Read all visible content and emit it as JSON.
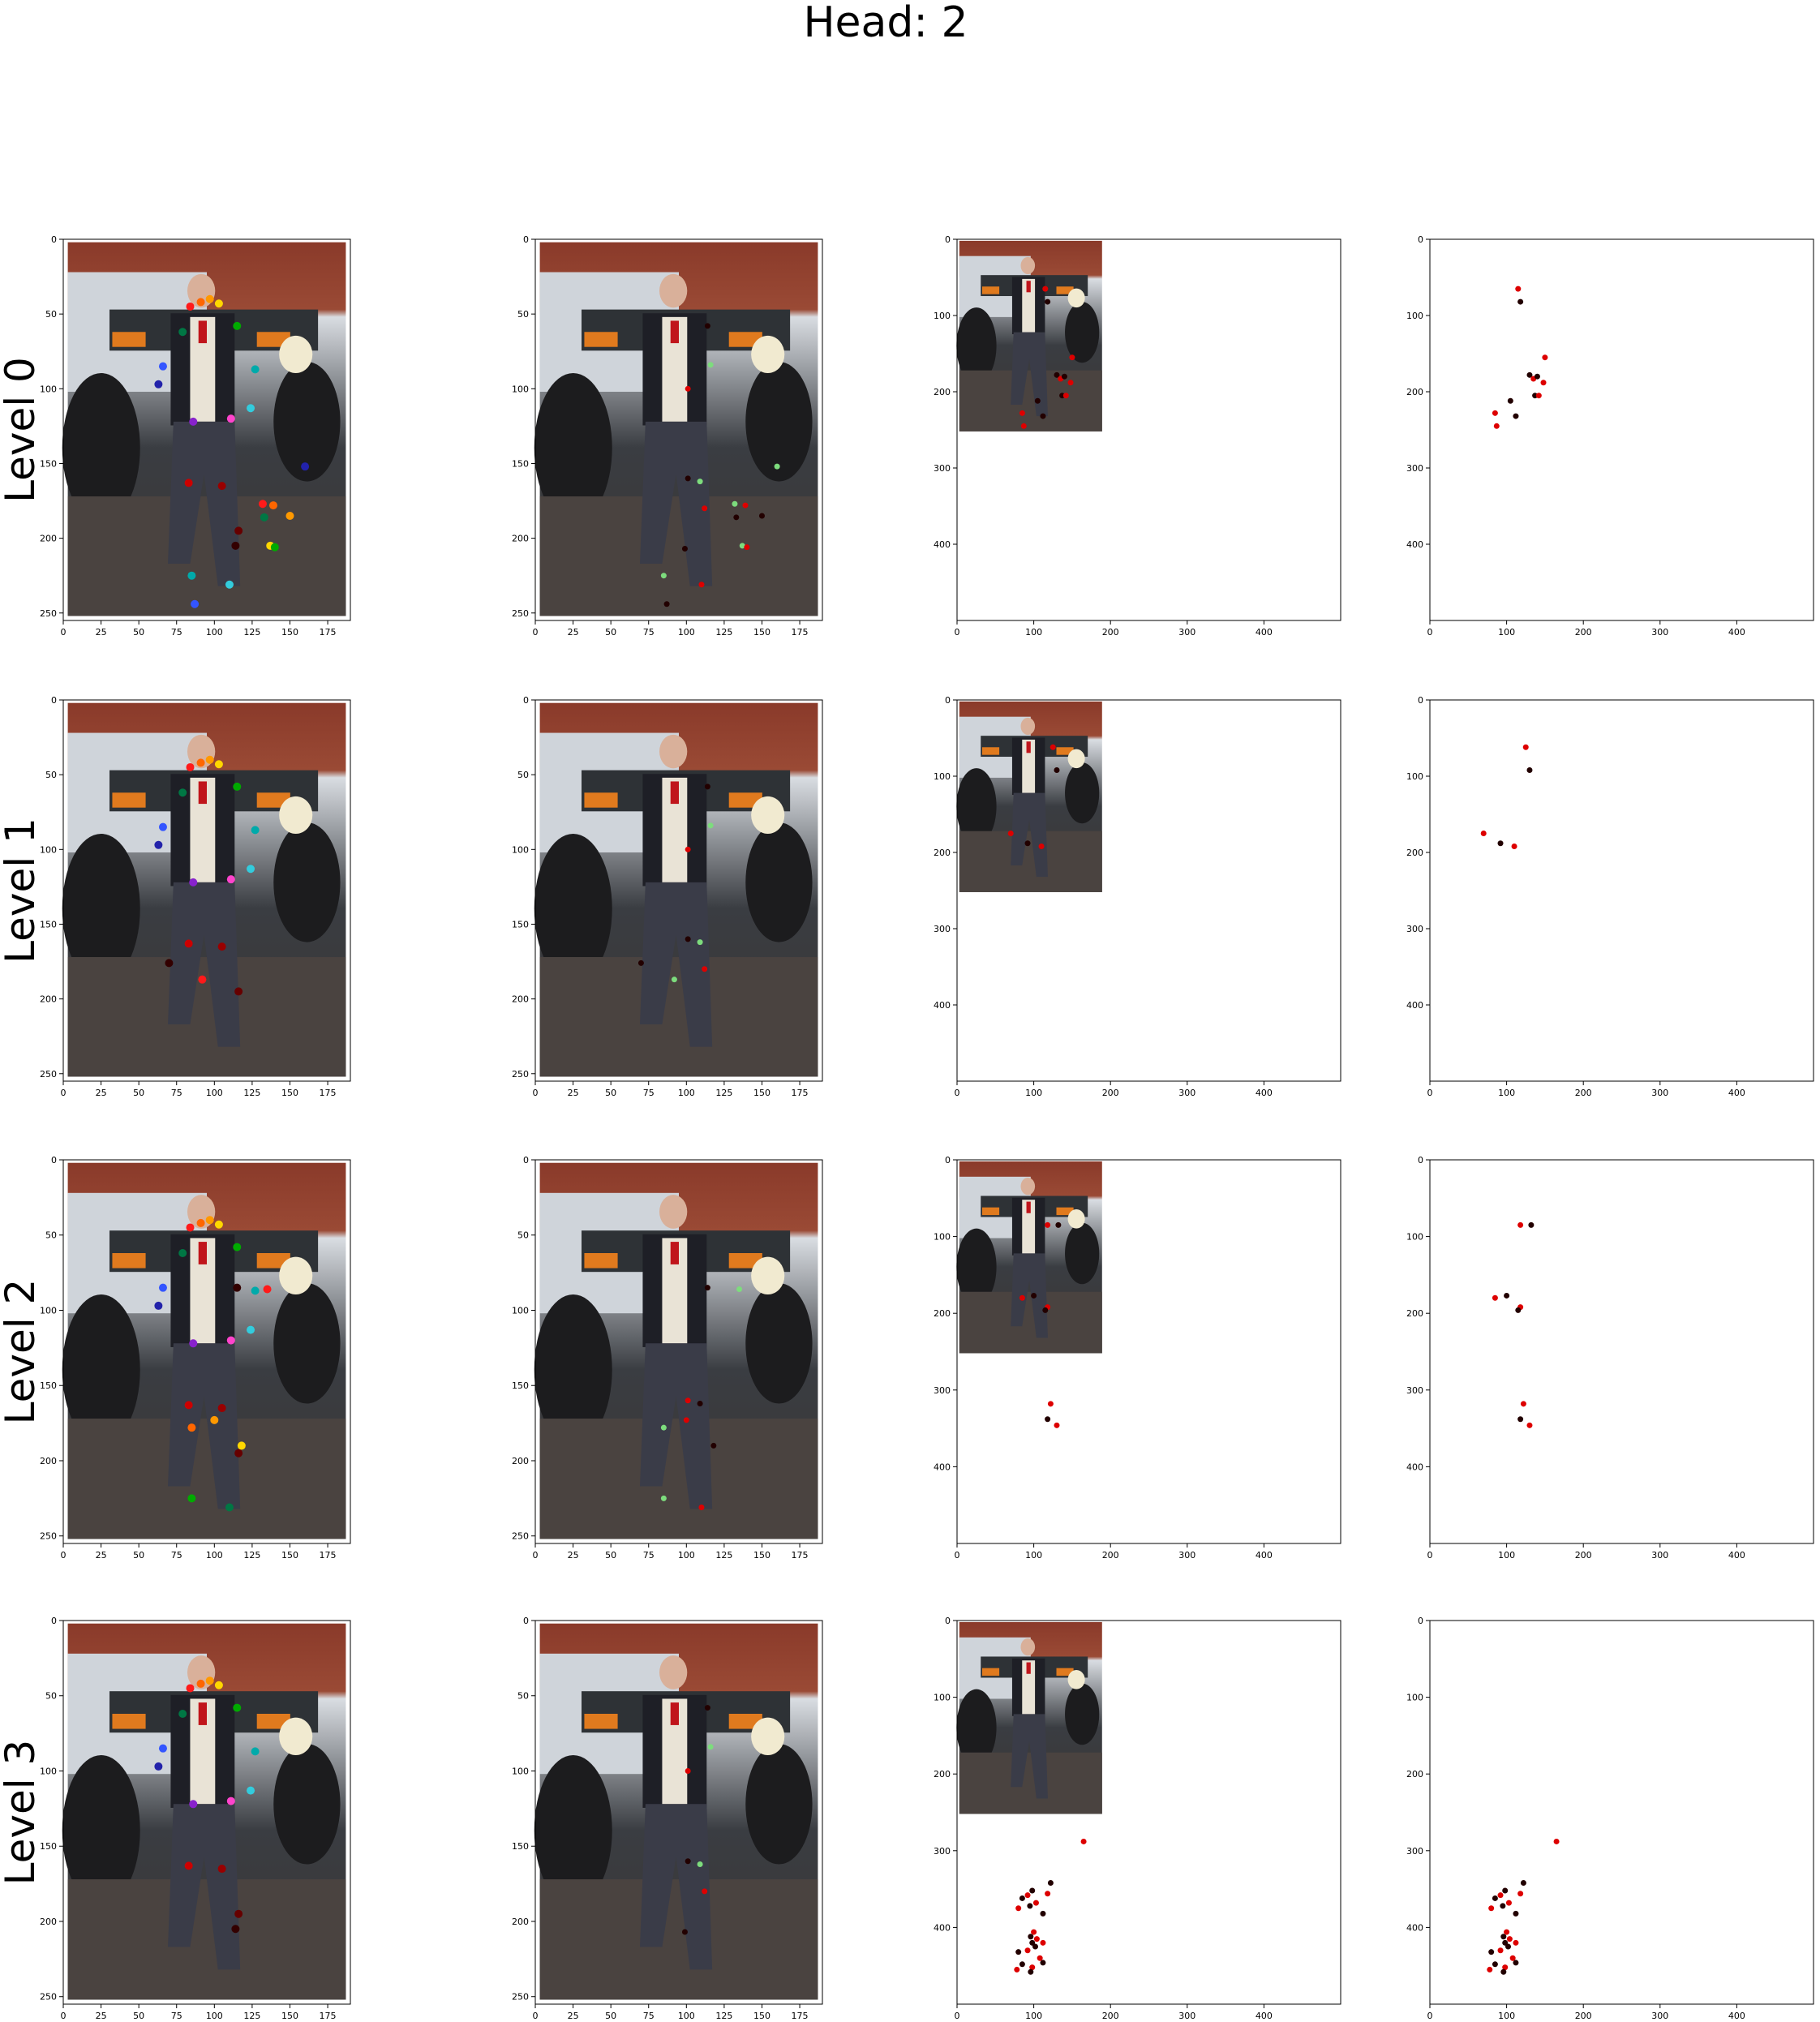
{
  "figure": {
    "suptitle": "Head: 2",
    "row_labels": [
      "Level 0",
      "Level 1",
      "Level 2",
      "Level 3"
    ]
  },
  "colors": {
    "ref_points": [
      "#ff1a1a",
      "#ff6600",
      "#ff9900",
      "#ffd700",
      "#00aa00",
      "#007744",
      "#00aaaa",
      "#33ccdd",
      "#3355ff",
      "#2222aa",
      "#8822cc",
      "#ff44cc",
      "#cc0000",
      "#990000",
      "#660000",
      "#330000"
    ],
    "sample_green": "#7ddc7d",
    "sample_dark": "#220000",
    "sample_red": "#dd0000"
  },
  "chart_data": [
    {
      "panel": "level0-reference-keypoints",
      "type": "scatter",
      "background": "person-photo",
      "xlim": [
        0,
        190
      ],
      "ylim": [
        255,
        0
      ],
      "xticks": [
        0,
        25,
        50,
        75,
        100,
        125,
        150,
        175
      ],
      "yticks": [
        0,
        50,
        100,
        150,
        200,
        250
      ],
      "points": [
        [
          84,
          45
        ],
        [
          91,
          42
        ],
        [
          97,
          40
        ],
        [
          103,
          43
        ],
        [
          115,
          58
        ],
        [
          79,
          62
        ],
        [
          127,
          87
        ],
        [
          124,
          113
        ],
        [
          66,
          85
        ],
        [
          63,
          97
        ],
        [
          86,
          122
        ],
        [
          111,
          120
        ],
        [
          83,
          163
        ],
        [
          105,
          165
        ],
        [
          116,
          195
        ],
        [
          114,
          205
        ],
        [
          132,
          177
        ],
        [
          139,
          178
        ],
        [
          150,
          185
        ],
        [
          137,
          205
        ],
        [
          140,
          206
        ],
        [
          133,
          186
        ],
        [
          85,
          225
        ],
        [
          110,
          231
        ],
        [
          87,
          244
        ],
        [
          160,
          152
        ]
      ]
    },
    {
      "panel": "level0-sampling-points",
      "type": "scatter",
      "background": "person-photo",
      "xlim": [
        0,
        190
      ],
      "ylim": [
        255,
        0
      ],
      "xticks": [
        0,
        25,
        50,
        75,
        100,
        125,
        150,
        175
      ],
      "yticks": [
        0,
        50,
        100,
        150,
        200,
        250
      ],
      "points": [
        [
          114,
          58
        ],
        [
          116,
          84
        ],
        [
          101,
          100
        ],
        [
          101,
          160
        ],
        [
          109,
          162
        ],
        [
          112,
          180
        ],
        [
          99,
          207
        ],
        [
          132,
          177
        ],
        [
          139,
          178
        ],
        [
          150,
          185
        ],
        [
          137,
          205
        ],
        [
          140,
          206
        ],
        [
          133,
          186
        ],
        [
          85,
          225
        ],
        [
          110,
          231
        ],
        [
          87,
          244
        ],
        [
          160,
          152
        ]
      ]
    },
    {
      "panel": "level0-image-extent",
      "type": "scatter",
      "background": "photo-thumbnail",
      "xlim": [
        0,
        500
      ],
      "ylim": [
        500,
        0
      ],
      "xticks": [
        0,
        100,
        200,
        300,
        400
      ],
      "yticks": [
        0,
        100,
        200,
        300,
        400
      ],
      "points": [
        [
          115,
          65
        ],
        [
          118,
          82
        ],
        [
          150,
          155
        ],
        [
          130,
          178
        ],
        [
          135,
          183
        ],
        [
          140,
          180
        ],
        [
          148,
          188
        ],
        [
          137,
          205
        ],
        [
          142,
          205
        ],
        [
          105,
          212
        ],
        [
          85,
          228
        ],
        [
          112,
          232
        ],
        [
          87,
          245
        ]
      ]
    },
    {
      "panel": "level0-points-only",
      "type": "scatter",
      "background": "none",
      "xlim": [
        0,
        500
      ],
      "ylim": [
        500,
        0
      ],
      "xticks": [
        0,
        100,
        200,
        300,
        400
      ],
      "yticks": [
        0,
        100,
        200,
        300,
        400
      ],
      "points": [
        [
          115,
          65
        ],
        [
          118,
          82
        ],
        [
          150,
          155
        ],
        [
          130,
          178
        ],
        [
          135,
          183
        ],
        [
          140,
          180
        ],
        [
          148,
          188
        ],
        [
          137,
          205
        ],
        [
          142,
          205
        ],
        [
          105,
          212
        ],
        [
          85,
          228
        ],
        [
          112,
          232
        ],
        [
          87,
          245
        ]
      ]
    },
    {
      "panel": "level1-reference-keypoints",
      "type": "scatter",
      "background": "person-photo",
      "xlim": [
        0,
        190
      ],
      "ylim": [
        255,
        0
      ],
      "xticks": [
        0,
        25,
        50,
        75,
        100,
        125,
        150,
        175
      ],
      "yticks": [
        0,
        50,
        100,
        150,
        200,
        250
      ],
      "points": [
        [
          84,
          45
        ],
        [
          91,
          42
        ],
        [
          97,
          40
        ],
        [
          103,
          43
        ],
        [
          115,
          58
        ],
        [
          79,
          62
        ],
        [
          127,
          87
        ],
        [
          124,
          113
        ],
        [
          66,
          85
        ],
        [
          63,
          97
        ],
        [
          86,
          122
        ],
        [
          111,
          120
        ],
        [
          83,
          163
        ],
        [
          105,
          165
        ],
        [
          116,
          195
        ],
        [
          70,
          176
        ],
        [
          92,
          187
        ]
      ]
    },
    {
      "panel": "level1-sampling-points",
      "type": "scatter",
      "background": "person-photo",
      "xlim": [
        0,
        190
      ],
      "ylim": [
        255,
        0
      ],
      "xticks": [
        0,
        25,
        50,
        75,
        100,
        125,
        150,
        175
      ],
      "yticks": [
        0,
        50,
        100,
        150,
        200,
        250
      ],
      "points": [
        [
          114,
          58
        ],
        [
          116,
          84
        ],
        [
          101,
          100
        ],
        [
          101,
          160
        ],
        [
          109,
          162
        ],
        [
          112,
          180
        ],
        [
          70,
          176
        ],
        [
          92,
          187
        ]
      ]
    },
    {
      "panel": "level1-image-extent",
      "type": "scatter",
      "background": "photo-thumbnail",
      "xlim": [
        0,
        500
      ],
      "ylim": [
        500,
        0
      ],
      "xticks": [
        0,
        100,
        200,
        300,
        400
      ],
      "yticks": [
        0,
        100,
        200,
        300,
        400
      ],
      "points": [
        [
          125,
          62
        ],
        [
          130,
          92
        ],
        [
          70,
          175
        ],
        [
          92,
          188
        ],
        [
          110,
          192
        ]
      ]
    },
    {
      "panel": "level1-points-only",
      "type": "scatter",
      "background": "none",
      "xlim": [
        0,
        500
      ],
      "ylim": [
        500,
        0
      ],
      "xticks": [
        0,
        100,
        200,
        300,
        400
      ],
      "yticks": [
        0,
        100,
        200,
        300,
        400
      ],
      "points": [
        [
          125,
          62
        ],
        [
          130,
          92
        ],
        [
          70,
          175
        ],
        [
          92,
          188
        ],
        [
          110,
          192
        ]
      ]
    },
    {
      "panel": "level2-reference-keypoints",
      "type": "scatter",
      "background": "person-photo",
      "xlim": [
        0,
        190
      ],
      "ylim": [
        255,
        0
      ],
      "xticks": [
        0,
        25,
        50,
        75,
        100,
        125,
        150,
        175
      ],
      "yticks": [
        0,
        50,
        100,
        150,
        200,
        250
      ],
      "points": [
        [
          84,
          45
        ],
        [
          91,
          42
        ],
        [
          97,
          40
        ],
        [
          103,
          43
        ],
        [
          115,
          58
        ],
        [
          79,
          62
        ],
        [
          127,
          87
        ],
        [
          124,
          113
        ],
        [
          66,
          85
        ],
        [
          63,
          97
        ],
        [
          86,
          122
        ],
        [
          111,
          120
        ],
        [
          83,
          163
        ],
        [
          105,
          165
        ],
        [
          116,
          195
        ],
        [
          115,
          85
        ],
        [
          135,
          86
        ],
        [
          85,
          178
        ],
        [
          100,
          173
        ],
        [
          118,
          190
        ],
        [
          85,
          225
        ],
        [
          110,
          231
        ]
      ]
    },
    {
      "panel": "level2-sampling-points",
      "type": "scatter",
      "background": "person-photo",
      "xlim": [
        0,
        190
      ],
      "ylim": [
        255,
        0
      ],
      "xticks": [
        0,
        25,
        50,
        75,
        100,
        125,
        150,
        175
      ],
      "yticks": [
        0,
        50,
        100,
        150,
        200,
        250
      ],
      "points": [
        [
          114,
          85
        ],
        [
          135,
          86
        ],
        [
          101,
          160
        ],
        [
          109,
          162
        ],
        [
          85,
          178
        ],
        [
          100,
          173
        ],
        [
          118,
          190
        ],
        [
          85,
          225
        ],
        [
          110,
          231
        ]
      ]
    },
    {
      "panel": "level2-image-extent",
      "type": "scatter",
      "background": "photo-thumbnail",
      "xlim": [
        0,
        500
      ],
      "ylim": [
        500,
        0
      ],
      "xticks": [
        0,
        100,
        200,
        300,
        400
      ],
      "yticks": [
        0,
        100,
        200,
        300,
        400
      ],
      "points": [
        [
          118,
          85
        ],
        [
          132,
          85
        ],
        [
          85,
          180
        ],
        [
          100,
          177
        ],
        [
          118,
          192
        ],
        [
          115,
          196
        ],
        [
          122,
          318
        ],
        [
          118,
          338
        ],
        [
          130,
          346
        ]
      ]
    },
    {
      "panel": "level2-points-only",
      "type": "scatter",
      "background": "none",
      "xlim": [
        0,
        500
      ],
      "ylim": [
        500,
        0
      ],
      "xticks": [
        0,
        100,
        200,
        300,
        400
      ],
      "yticks": [
        0,
        100,
        200,
        300,
        400
      ],
      "points": [
        [
          118,
          85
        ],
        [
          132,
          85
        ],
        [
          85,
          180
        ],
        [
          100,
          177
        ],
        [
          118,
          192
        ],
        [
          115,
          196
        ],
        [
          122,
          318
        ],
        [
          118,
          338
        ],
        [
          130,
          346
        ]
      ]
    },
    {
      "panel": "level3-reference-keypoints",
      "type": "scatter",
      "background": "person-photo",
      "xlim": [
        0,
        190
      ],
      "ylim": [
        255,
        0
      ],
      "xticks": [
        0,
        25,
        50,
        75,
        100,
        125,
        150,
        175
      ],
      "yticks": [
        0,
        50,
        100,
        150,
        200,
        250
      ],
      "points": [
        [
          84,
          45
        ],
        [
          91,
          42
        ],
        [
          97,
          40
        ],
        [
          103,
          43
        ],
        [
          115,
          58
        ],
        [
          79,
          62
        ],
        [
          127,
          87
        ],
        [
          124,
          113
        ],
        [
          66,
          85
        ],
        [
          63,
          97
        ],
        [
          86,
          122
        ],
        [
          111,
          120
        ],
        [
          83,
          163
        ],
        [
          105,
          165
        ],
        [
          116,
          195
        ],
        [
          114,
          205
        ]
      ]
    },
    {
      "panel": "level3-sampling-points",
      "type": "scatter",
      "background": "person-photo",
      "xlim": [
        0,
        190
      ],
      "ylim": [
        255,
        0
      ],
      "xticks": [
        0,
        25,
        50,
        75,
        100,
        125,
        150,
        175
      ],
      "yticks": [
        0,
        50,
        100,
        150,
        200,
        250
      ],
      "points": [
        [
          114,
          58
        ],
        [
          116,
          84
        ],
        [
          101,
          100
        ],
        [
          101,
          160
        ],
        [
          109,
          162
        ],
        [
          112,
          180
        ],
        [
          99,
          207
        ]
      ]
    },
    {
      "panel": "level3-image-extent",
      "type": "scatter",
      "background": "photo-thumbnail",
      "xlim": [
        0,
        500
      ],
      "ylim": [
        500,
        0
      ],
      "xticks": [
        0,
        100,
        200,
        300,
        400
      ],
      "yticks": [
        0,
        100,
        200,
        300,
        400
      ],
      "points": [
        [
          165,
          288
        ],
        [
          122,
          342
        ],
        [
          118,
          356
        ],
        [
          98,
          352
        ],
        [
          92,
          358
        ],
        [
          85,
          362
        ],
        [
          103,
          368
        ],
        [
          95,
          372
        ],
        [
          80,
          375
        ],
        [
          112,
          382
        ],
        [
          100,
          406
        ],
        [
          96,
          412
        ],
        [
          104,
          415
        ],
        [
          98,
          420
        ],
        [
          112,
          420
        ],
        [
          102,
          425
        ],
        [
          92,
          430
        ],
        [
          80,
          432
        ],
        [
          108,
          440
        ],
        [
          85,
          448
        ],
        [
          98,
          452
        ],
        [
          112,
          446
        ],
        [
          78,
          455
        ],
        [
          96,
          458
        ]
      ]
    },
    {
      "panel": "level3-points-only",
      "type": "scatter",
      "background": "none",
      "xlim": [
        0,
        500
      ],
      "ylim": [
        500,
        0
      ],
      "xticks": [
        0,
        100,
        200,
        300,
        400
      ],
      "yticks": [
        0,
        100,
        200,
        300,
        400
      ],
      "points": [
        [
          165,
          288
        ],
        [
          122,
          342
        ],
        [
          118,
          356
        ],
        [
          98,
          352
        ],
        [
          92,
          358
        ],
        [
          85,
          362
        ],
        [
          103,
          368
        ],
        [
          95,
          372
        ],
        [
          80,
          375
        ],
        [
          112,
          382
        ],
        [
          100,
          406
        ],
        [
          96,
          412
        ],
        [
          104,
          415
        ],
        [
          98,
          420
        ],
        [
          112,
          420
        ],
        [
          102,
          425
        ],
        [
          92,
          430
        ],
        [
          80,
          432
        ],
        [
          108,
          440
        ],
        [
          85,
          448
        ],
        [
          98,
          452
        ],
        [
          112,
          446
        ],
        [
          78,
          455
        ],
        [
          96,
          458
        ]
      ]
    }
  ]
}
